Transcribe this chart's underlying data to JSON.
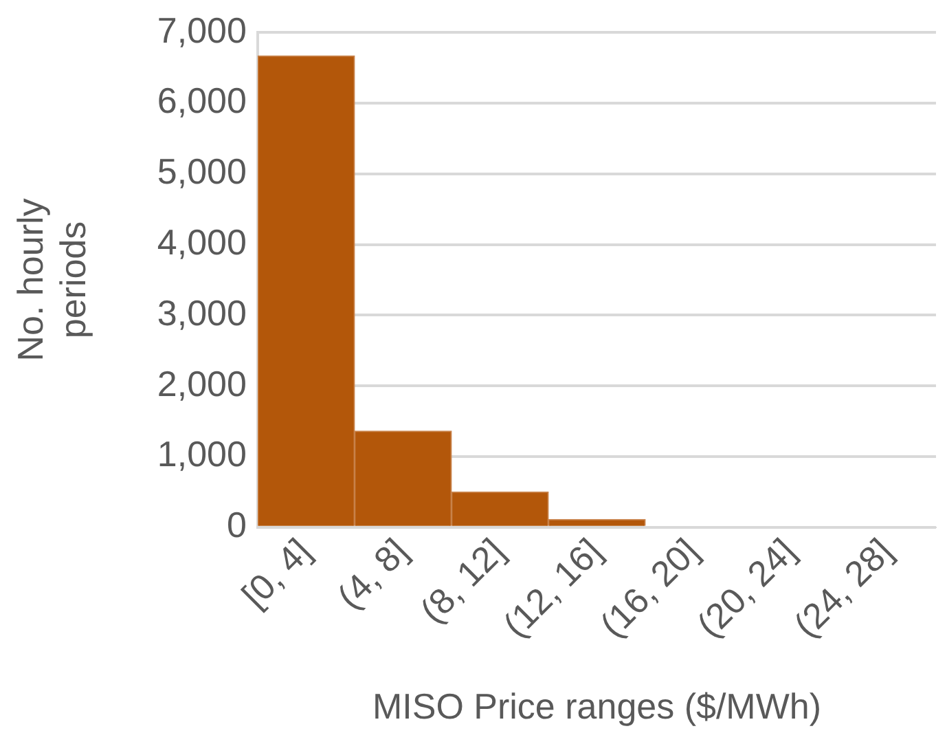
{
  "chart_data": {
    "type": "bar",
    "xlabel": "MISO Price ranges ($/MWh)",
    "ylabel": "No. hourly periods",
    "categories": [
      "[0, 4]",
      "(4, 8]",
      "(8, 12]",
      "(12, 16]",
      "(16, 20]",
      "(20, 24]",
      "(24, 28]"
    ],
    "values": [
      6670,
      1360,
      500,
      110,
      0,
      0,
      0
    ],
    "color": "#b3570a",
    "ylim": [
      0,
      7000
    ],
    "yticks": [
      0,
      {
        "value": 1000,
        "label": "1,000"
      },
      {
        "value": 2000,
        "label": "2,000"
      },
      {
        "value": 3000,
        "label": "3,000"
      },
      {
        "value": 4000,
        "label": "4,000"
      },
      {
        "value": 5000,
        "label": "5,000"
      },
      {
        "value": 6000,
        "label": "6,000"
      },
      {
        "value": 7000,
        "label": "7,000"
      }
    ],
    "grid": "y",
    "legend": false
  }
}
